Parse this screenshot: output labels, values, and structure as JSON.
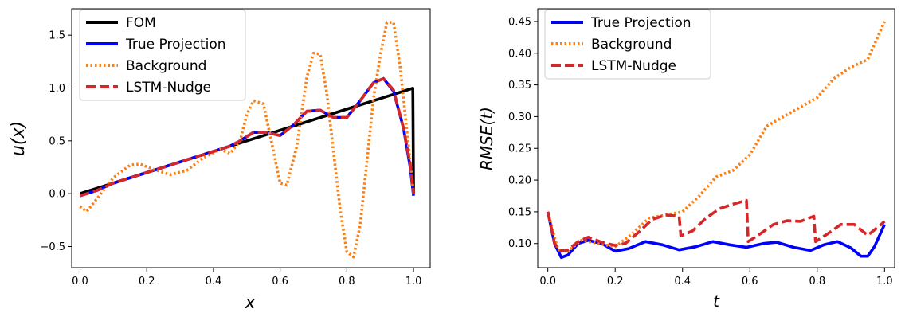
{
  "chart_data": [
    {
      "type": "line",
      "xlabel": "x",
      "ylabel": "u(x)",
      "xlim": [
        -0.025,
        1.05
      ],
      "ylim": [
        -0.7,
        1.75
      ],
      "xticks": [
        0.0,
        0.2,
        0.4,
        0.6,
        0.8,
        1.0
      ],
      "xtick_labels": [
        "0.0",
        "0.2",
        "0.4",
        "0.6",
        "0.8",
        "1.0"
      ],
      "yticks": [
        -0.5,
        0.0,
        0.5,
        1.0,
        1.5
      ],
      "ytick_labels": [
        "−0.5",
        "0.0",
        "0.5",
        "1.0",
        "1.5"
      ],
      "grid": false,
      "legend_position": "top-left",
      "series": [
        {
          "name": "FOM",
          "color": "#000000",
          "style": "solid",
          "x": [
            0.0,
            0.1,
            0.2,
            0.3,
            0.4,
            0.5,
            0.6,
            0.7,
            0.8,
            0.9,
            0.998,
            1.0
          ],
          "y": [
            0.0,
            0.1,
            0.2,
            0.3,
            0.4,
            0.5,
            0.6,
            0.7,
            0.8,
            0.9,
            0.998,
            0.0
          ]
        },
        {
          "name": "True Projection",
          "color": "#0000ff",
          "style": "solid",
          "x": [
            0.0,
            0.05,
            0.1,
            0.15,
            0.2,
            0.25,
            0.3,
            0.35,
            0.4,
            0.45,
            0.48,
            0.52,
            0.56,
            0.6,
            0.64,
            0.68,
            0.72,
            0.76,
            0.8,
            0.84,
            0.88,
            0.91,
            0.94,
            0.97,
            0.99,
            1.0
          ],
          "y": [
            -0.02,
            0.03,
            0.1,
            0.15,
            0.2,
            0.25,
            0.3,
            0.35,
            0.4,
            0.45,
            0.5,
            0.58,
            0.58,
            0.55,
            0.65,
            0.78,
            0.79,
            0.72,
            0.72,
            0.88,
            1.05,
            1.09,
            0.97,
            0.62,
            0.25,
            -0.02
          ]
        },
        {
          "name": "Background",
          "color": "#ff7f0e",
          "style": "dotted",
          "x": [
            0.0,
            0.02,
            0.05,
            0.1,
            0.15,
            0.18,
            0.22,
            0.27,
            0.32,
            0.37,
            0.42,
            0.45,
            0.48,
            0.5,
            0.52,
            0.55,
            0.58,
            0.6,
            0.62,
            0.65,
            0.68,
            0.7,
            0.72,
            0.74,
            0.76,
            0.78,
            0.8,
            0.82,
            0.84,
            0.86,
            0.88,
            0.9,
            0.92,
            0.94,
            0.96,
            0.98,
            1.0
          ],
          "y": [
            -0.12,
            -0.17,
            -0.05,
            0.15,
            0.27,
            0.28,
            0.23,
            0.18,
            0.22,
            0.34,
            0.42,
            0.38,
            0.5,
            0.75,
            0.88,
            0.85,
            0.4,
            0.1,
            0.08,
            0.45,
            1.1,
            1.33,
            1.32,
            0.95,
            0.4,
            -0.15,
            -0.55,
            -0.6,
            -0.3,
            0.3,
            0.9,
            1.3,
            1.62,
            1.62,
            1.2,
            0.6,
            0.0
          ]
        },
        {
          "name": "LSTM-Nudge",
          "color": "#d62728",
          "style": "dashed",
          "x": [
            0.0,
            0.05,
            0.1,
            0.15,
            0.2,
            0.25,
            0.3,
            0.35,
            0.4,
            0.45,
            0.48,
            0.52,
            0.56,
            0.6,
            0.64,
            0.68,
            0.72,
            0.76,
            0.8,
            0.84,
            0.88,
            0.91,
            0.94,
            0.97,
            0.99,
            1.0
          ],
          "y": [
            -0.02,
            0.03,
            0.1,
            0.15,
            0.2,
            0.25,
            0.3,
            0.35,
            0.4,
            0.45,
            0.5,
            0.58,
            0.58,
            0.55,
            0.65,
            0.78,
            0.79,
            0.72,
            0.72,
            0.88,
            1.05,
            1.09,
            0.98,
            0.62,
            0.28,
            0.0
          ]
        }
      ]
    },
    {
      "type": "line",
      "xlabel": "t",
      "ylabel": "RMSE(t)",
      "xlim": [
        -0.03,
        1.03
      ],
      "ylim": [
        0.062,
        0.47
      ],
      "xticks": [
        0.0,
        0.2,
        0.4,
        0.6,
        0.8,
        1.0
      ],
      "xtick_labels": [
        "0.0",
        "0.2",
        "0.4",
        "0.6",
        "0.8",
        "1.0"
      ],
      "yticks": [
        0.1,
        0.15,
        0.2,
        0.25,
        0.3,
        0.35,
        0.4,
        0.45
      ],
      "ytick_labels": [
        "0.10",
        "0.15",
        "0.20",
        "0.25",
        "0.30",
        "0.35",
        "0.40",
        "0.45"
      ],
      "grid": false,
      "legend_position": "top-left",
      "series": [
        {
          "name": "True Projection",
          "color": "#0000ff",
          "style": "solid",
          "x": [
            0.0,
            0.02,
            0.04,
            0.06,
            0.09,
            0.12,
            0.16,
            0.2,
            0.24,
            0.29,
            0.34,
            0.39,
            0.44,
            0.49,
            0.54,
            0.59,
            0.64,
            0.68,
            0.73,
            0.78,
            0.82,
            0.86,
            0.9,
            0.93,
            0.95,
            0.97,
            1.0
          ],
          "y": [
            0.15,
            0.1,
            0.078,
            0.082,
            0.1,
            0.105,
            0.1,
            0.088,
            0.092,
            0.103,
            0.098,
            0.09,
            0.095,
            0.103,
            0.098,
            0.094,
            0.1,
            0.102,
            0.094,
            0.089,
            0.098,
            0.103,
            0.093,
            0.08,
            0.08,
            0.095,
            0.13
          ]
        },
        {
          "name": "Background",
          "color": "#ff7f0e",
          "style": "dotted",
          "x": [
            0.0,
            0.03,
            0.06,
            0.1,
            0.15,
            0.2,
            0.25,
            0.3,
            0.35,
            0.4,
            0.45,
            0.5,
            0.55,
            0.6,
            0.65,
            0.7,
            0.75,
            0.8,
            0.85,
            0.9,
            0.95,
            1.0
          ],
          "y": [
            0.15,
            0.09,
            0.088,
            0.105,
            0.1,
            0.095,
            0.115,
            0.14,
            0.145,
            0.15,
            0.175,
            0.205,
            0.215,
            0.24,
            0.285,
            0.3,
            0.315,
            0.33,
            0.36,
            0.378,
            0.39,
            0.45
          ]
        },
        {
          "name": "LSTM-Nudge",
          "color": "#d62728",
          "style": "dashed",
          "x": [
            0.0,
            0.02,
            0.04,
            0.06,
            0.09,
            0.12,
            0.16,
            0.2,
            0.23,
            0.27,
            0.31,
            0.35,
            0.39,
            0.395,
            0.43,
            0.47,
            0.51,
            0.55,
            0.59,
            0.595,
            0.63,
            0.67,
            0.71,
            0.75,
            0.79,
            0.795,
            0.83,
            0.87,
            0.91,
            0.95,
            0.99,
            1.0
          ],
          "y": [
            0.15,
            0.1,
            0.088,
            0.09,
            0.103,
            0.11,
            0.102,
            0.097,
            0.1,
            0.118,
            0.138,
            0.145,
            0.143,
            0.112,
            0.12,
            0.14,
            0.155,
            0.162,
            0.168,
            0.103,
            0.115,
            0.13,
            0.136,
            0.135,
            0.143,
            0.103,
            0.115,
            0.13,
            0.13,
            0.113,
            0.13,
            0.135
          ]
        }
      ]
    }
  ]
}
